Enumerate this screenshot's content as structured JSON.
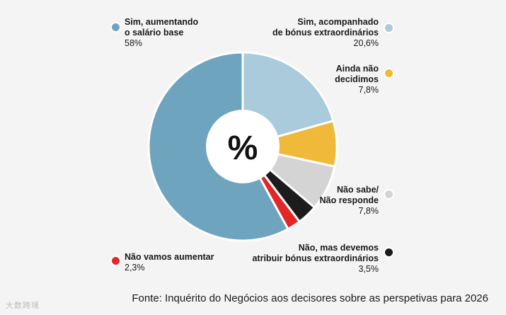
{
  "chart_data": {
    "type": "pie",
    "title": "",
    "center_label": "%",
    "slices": [
      {
        "label": "Sim, aumentando\no salário base",
        "value": 58.0,
        "display": "58%",
        "color": "#6fa4be"
      },
      {
        "label": "Sim, acompanhado\nde bónus extraordinários",
        "value": 20.6,
        "display": "20,6%",
        "color": "#a9cbdb"
      },
      {
        "label": "Ainda não\ndecidimos",
        "value": 7.8,
        "display": "7,8%",
        "color": "#f0b93a"
      },
      {
        "label": "Não sabe/\nNão responde",
        "value": 7.8,
        "display": "7,8%",
        "color": "#d4d4d4"
      },
      {
        "label": "Não, mas devemos\natribuir bónus extraordinários",
        "value": 3.5,
        "display": "3,5%",
        "color": "#1c1c1c"
      },
      {
        "label": "Não vamos aumentar",
        "value": 2.3,
        "display": "2,3%",
        "color": "#e32626"
      }
    ]
  },
  "source": "Fonte: Inquérito do Negócios aos decisores sobre as perspetivas para 2026",
  "watermark": "大数跨境"
}
